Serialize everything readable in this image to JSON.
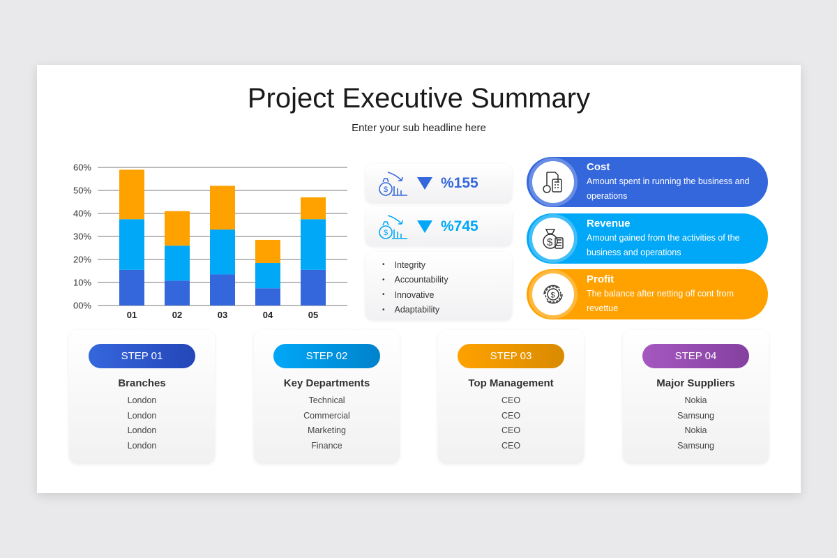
{
  "title": "Project Executive Summary",
  "subtitle": "Enter your sub headline here",
  "colors": {
    "dark_blue": "#3567dc",
    "light_blue": "#00a8f7",
    "orange": "#ffa200",
    "purple": "#9b4fb5"
  },
  "chart_data": {
    "type": "bar",
    "stacked": true,
    "categories": [
      "01",
      "02",
      "03",
      "04",
      "05"
    ],
    "yticks": [
      "00%",
      "10%",
      "20%",
      "30%",
      "40%",
      "50%",
      "60%"
    ],
    "ylim": [
      0,
      60
    ],
    "grid": true,
    "series": [
      {
        "color": "#3567dc",
        "values": [
          15.5,
          10.8,
          13.5,
          7.5,
          15.5
        ]
      },
      {
        "color": "#00a8f7",
        "values": [
          22,
          15.2,
          19.5,
          11,
          22
        ]
      },
      {
        "color": "#ffa200",
        "values": [
          21.5,
          15,
          19,
          10,
          9.5
        ]
      }
    ]
  },
  "stats": [
    {
      "icon": "money-bag-chart-down-icon",
      "value": "%155",
      "color": "#3567dc"
    },
    {
      "icon": "money-bag-chart-down-icon",
      "value": "%745",
      "color": "#00a8f7"
    }
  ],
  "values_list": [
    "Integrity",
    "Accountability",
    "Innovative",
    "Adaptability"
  ],
  "pills": [
    {
      "icon": "invoice-calculator-icon",
      "title": "Cost",
      "desc": "Amount spent in running the business and operations",
      "color": "#3567dc"
    },
    {
      "icon": "money-bag-calculator-icon",
      "title": "Revenue",
      "desc": "Amount gained from the activities of the business and operations",
      "color": "#00a8f7"
    },
    {
      "icon": "dollar-gear-icon",
      "title": "Profit",
      "desc": "The balance after netting off cont from revettue",
      "color": "#ffa200"
    }
  ],
  "steps": [
    {
      "label": "STEP 01",
      "title": "Branches",
      "items": [
        "London",
        "London",
        "London",
        "London"
      ]
    },
    {
      "label": "STEP 02",
      "title": "Key Departments",
      "items": [
        "Technical",
        "Commercial",
        "Marketing",
        "Finance"
      ]
    },
    {
      "label": "STEP 03",
      "title": "Top Management",
      "items": [
        "CEO",
        "CEO",
        "CEO",
        "CEO"
      ]
    },
    {
      "label": "STEP 04",
      "title": "Major Suppliers",
      "items": [
        "Nokia",
        "Samsung",
        "Nokia",
        "Samsung"
      ]
    }
  ]
}
